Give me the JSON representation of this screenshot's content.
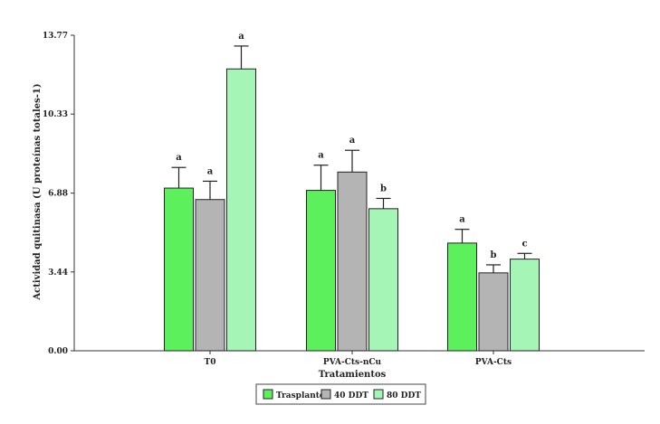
{
  "chart_data": {
    "type": "bar",
    "xlabel": "Tratamientos",
    "ylabel": "Actividad quitinasa (U proteínas totales-1)",
    "ylim": [
      0,
      13.77
    ],
    "yticks": [
      "0.00",
      "3.44",
      "6.88",
      "10.33",
      "13.77"
    ],
    "ytick_values": [
      0,
      3.44,
      6.88,
      10.33,
      13.77
    ],
    "categories": [
      "T0",
      "PVA-Cts-nCu",
      "PVA-Cts"
    ],
    "series": [
      {
        "name": "Trasplante",
        "color": "#5cf05c",
        "values": [
          7.1,
          7.0,
          4.7
        ],
        "errors": [
          0.9,
          1.1,
          0.6
        ],
        "letters": [
          "a",
          "a",
          "a"
        ]
      },
      {
        "name": "40 DDT",
        "color": "#b4b4b4",
        "values": [
          6.6,
          7.8,
          3.4
        ],
        "errors": [
          0.8,
          0.95,
          0.35
        ],
        "letters": [
          "a",
          "a",
          "b"
        ]
      },
      {
        "name": "80 DDT",
        "color": "#a4f5b6",
        "values": [
          12.3,
          6.2,
          4.0
        ],
        "errors": [
          1.0,
          0.45,
          0.25
        ],
        "letters": [
          "a",
          "b",
          "c"
        ]
      }
    ],
    "legend_position": "bottom-center",
    "grid": false
  }
}
